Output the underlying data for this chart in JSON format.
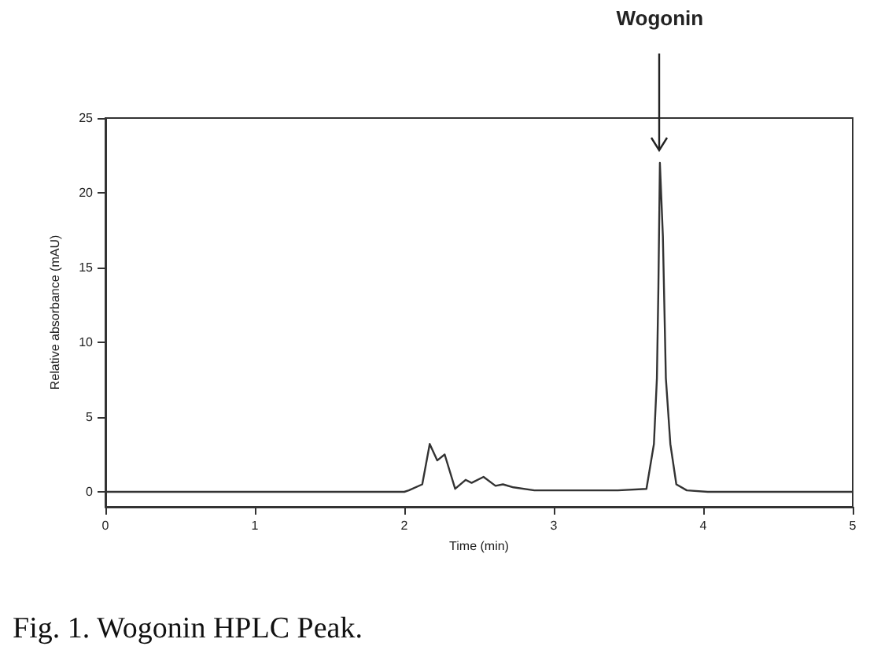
{
  "chart_data": {
    "type": "line",
    "xlabel": "Time (min)",
    "ylabel": "Relative absorbance (mAU)",
    "xlim": [
      0,
      5
    ],
    "xticks": [
      0,
      1,
      2,
      3,
      4,
      5
    ],
    "ylim": [
      -1,
      25
    ],
    "yticks": [
      0,
      5,
      10,
      15,
      20,
      25
    ],
    "grid": false,
    "marker": "none",
    "line_style": "solid",
    "series": [
      {
        "color": "#333333",
        "x": [
          0,
          2.0,
          2.03,
          2.12,
          2.17,
          2.22,
          2.27,
          2.34,
          2.41,
          2.45,
          2.53,
          2.61,
          2.66,
          2.73,
          2.87,
          3.43,
          3.62,
          3.67,
          3.69,
          3.7,
          3.71,
          3.73,
          3.75,
          3.78,
          3.82,
          3.89,
          4.03,
          5
        ],
        "values": [
          0,
          0,
          0.1,
          0.5,
          3.2,
          2.1,
          2.5,
          0.2,
          0.8,
          0.6,
          1.0,
          0.4,
          0.5,
          0.3,
          0.1,
          0.1,
          0.2,
          3.2,
          7.6,
          13.7,
          22.0,
          17.1,
          7.6,
          3.2,
          0.5,
          0.1,
          0,
          0
        ]
      }
    ],
    "annotations": [
      {
        "text": "Wogonin",
        "x": 3.71,
        "y": 22.0
      },
      "Fig. 1. Wogonin HPLC Peak."
    ]
  }
}
